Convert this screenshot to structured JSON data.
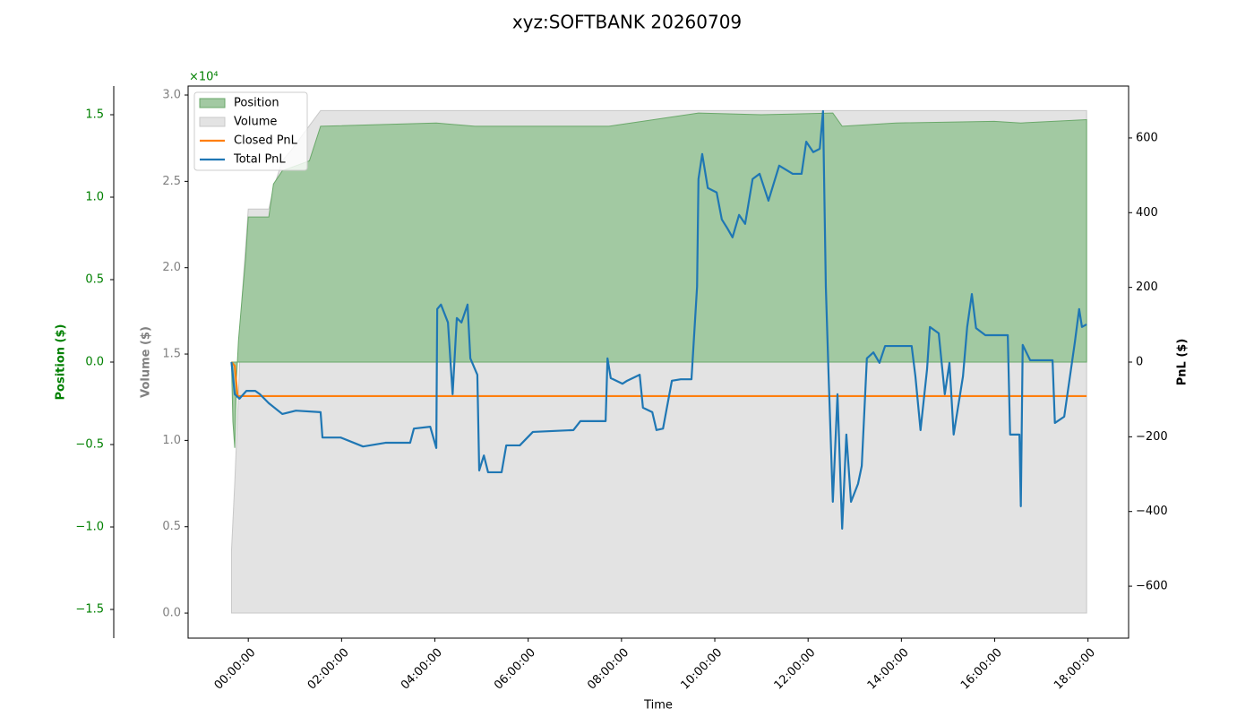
{
  "chart_data": {
    "type": "line",
    "title": "xyz:SOFTBANK 20260709",
    "x_label": "Time",
    "y_label": "Volume ($)",
    "y2_label": "PnL ($)",
    "y3_label": "Position ($)",
    "y3_offset_label": "×10⁴",
    "legend": "upper left",
    "grid": false,
    "xlim": [
      -1.29,
      18.87
    ],
    "xticks": [
      {
        "value": 0,
        "label": "00:00:00"
      },
      {
        "value": 2,
        "label": "02:00:00"
      },
      {
        "value": 4,
        "label": "04:00:00"
      },
      {
        "value": 6,
        "label": "06:00:00"
      },
      {
        "value": 8,
        "label": "08:00:00"
      },
      {
        "value": 10,
        "label": "10:00:00"
      },
      {
        "value": 12,
        "label": "12:00:00"
      },
      {
        "value": 14,
        "label": "14:00:00"
      },
      {
        "value": 16,
        "label": "16:00:00"
      },
      {
        "value": 18,
        "label": "18:00:00"
      }
    ],
    "ylim": [
      -0.145,
      3.052
    ],
    "yticks": [
      {
        "value": 0,
        "label": "0.0"
      },
      {
        "value": 0.5,
        "label": "0.5"
      },
      {
        "value": 1,
        "label": "1.0"
      },
      {
        "value": 1.5,
        "label": "1.5"
      },
      {
        "value": 2,
        "label": "2.0"
      },
      {
        "value": 2.5,
        "label": "2.5"
      },
      {
        "value": 3,
        "label": "3.0"
      }
    ],
    "y2lim": [
      -739,
      739
    ],
    "y2ticks": [
      {
        "value": -600,
        "label": "−600"
      },
      {
        "value": -400,
        "label": "−400"
      },
      {
        "value": -200,
        "label": "−200"
      },
      0,
      200,
      400,
      600
    ],
    "y3lim": [
      -1.674,
      1.674
    ],
    "y3ticks": [
      {
        "value": -1.5,
        "label": "−1.5"
      },
      {
        "value": -1,
        "label": "−1.0"
      },
      {
        "value": -0.5,
        "label": "−0.5"
      },
      {
        "value": 0,
        "label": "0.0"
      },
      {
        "value": 0.5,
        "label": "0.5"
      },
      {
        "value": 1,
        "label": "1.0"
      },
      {
        "value": 1.5,
        "label": "1.5"
      }
    ],
    "series": [
      {
        "name": "Position",
        "kind": "area",
        "axis": "y3",
        "color": "#a2c9a2",
        "x": [
          -0.36,
          -0.33,
          -0.29,
          -0.25,
          -0.21,
          -0.13,
          -0.06,
          0,
          0.44,
          0.54,
          0.73,
          1.31,
          1.55,
          4.03,
          4.86,
          7.73,
          9.65,
          10.99,
          12.53,
          12.73,
          13.88,
          15.99,
          16.56,
          17.97
        ],
        "values": [
          0,
          -0.36,
          -0.52,
          -0.09,
          0.13,
          0.4,
          0.62,
          0.88,
          0.88,
          1.08,
          1.16,
          1.22,
          1.43,
          1.45,
          1.43,
          1.43,
          1.51,
          1.5,
          1.51,
          1.43,
          1.45,
          1.46,
          1.45,
          1.47
        ]
      },
      {
        "name": "Volume",
        "kind": "area",
        "axis": "y",
        "color": "#e3e3e3",
        "x": [
          -0.36,
          -0.29,
          -0.21,
          -0.13,
          0,
          0.44,
          0.54,
          0.73,
          0.92,
          1.55,
          17.97
        ],
        "values": [
          0.36,
          0.75,
          1.27,
          1.84,
          2.34,
          2.34,
          2.46,
          2.62,
          2.68,
          2.91,
          2.91
        ]
      },
      {
        "name": "Closed PnL",
        "kind": "line",
        "axis": "y2",
        "color": "#ff7f0e",
        "x": [
          -0.36,
          -0.29,
          -0.23,
          17.97
        ],
        "values": [
          0,
          -10,
          -91,
          -91
        ]
      },
      {
        "name": "Total PnL",
        "kind": "line",
        "axis": "y2",
        "color": "#1f77b4",
        "x": [
          -0.36,
          -0.29,
          -0.19,
          -0.04,
          0.15,
          0.25,
          0.44,
          0.73,
          1.02,
          1.55,
          1.59,
          1.98,
          2.46,
          2.94,
          3.47,
          3.55,
          3.9,
          4.03,
          4.05,
          4.13,
          4.28,
          4.38,
          4.47,
          4.57,
          4.7,
          4.76,
          4.91,
          4.95,
          5.05,
          5.14,
          5.43,
          5.53,
          5.82,
          6.1,
          6.97,
          7.12,
          7.66,
          7.7,
          7.77,
          8.02,
          8.12,
          8.39,
          8.46,
          8.66,
          8.75,
          8.89,
          9.08,
          9.27,
          9.5,
          9.62,
          9.65,
          9.73,
          9.85,
          10.04,
          10.15,
          10.27,
          10.38,
          10.52,
          10.65,
          10.81,
          10.96,
          11.15,
          11.38,
          11.67,
          11.86,
          11.96,
          12.11,
          12.25,
          12.32,
          12.38,
          12.44,
          12.53,
          12.63,
          12.73,
          12.82,
          12.92,
          13.07,
          13.15,
          13.26,
          13.4,
          13.53,
          13.65,
          14.22,
          14.3,
          14.41,
          14.55,
          14.61,
          14.8,
          14.93,
          15.03,
          15.12,
          15.32,
          15.41,
          15.51,
          15.6,
          15.8,
          16.28,
          16.33,
          16.53,
          16.56,
          16.6,
          16.76,
          17.24,
          17.29,
          17.49,
          17.72,
          17.81,
          17.87,
          17.97
        ],
        "values": [
          0,
          -86,
          -98,
          -77,
          -77,
          -86,
          -110,
          -139,
          -130,
          -134,
          -202,
          -202,
          -226,
          -216,
          -216,
          -178,
          -173,
          -230,
          142,
          154,
          106,
          -86,
          118,
          106,
          154,
          10,
          -34,
          -290,
          -250,
          -295,
          -295,
          -223,
          -223,
          -187,
          -182,
          -158,
          -158,
          10,
          -43,
          -58,
          -50,
          -34,
          -122,
          -134,
          -182,
          -178,
          -50,
          -46,
          -46,
          202,
          490,
          557,
          466,
          454,
          382,
          358,
          334,
          394,
          370,
          490,
          504,
          432,
          526,
          504,
          504,
          590,
          562,
          571,
          672,
          202,
          -38,
          -374,
          -86,
          -446,
          -194,
          -374,
          -326,
          -278,
          10,
          26,
          -2,
          43,
          43,
          -38,
          -182,
          -19,
          94,
          77,
          -86,
          -2,
          -194,
          -38,
          94,
          182,
          91,
          72,
          72,
          -194,
          -194,
          -386,
          46,
          5,
          5,
          -163,
          -146,
          55,
          142,
          94,
          101
        ]
      }
    ]
  }
}
